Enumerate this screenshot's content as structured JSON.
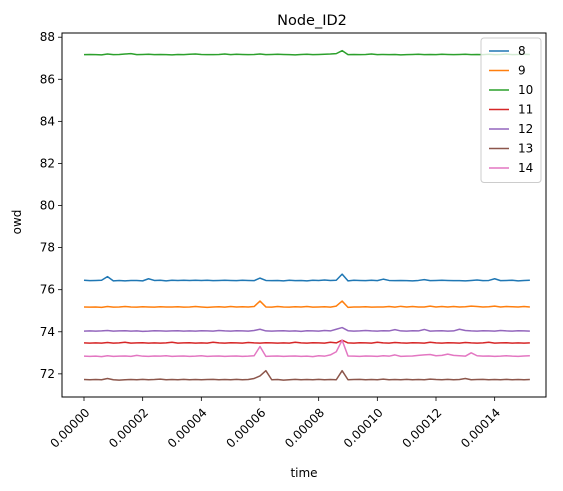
{
  "chart_data": {
    "type": "line",
    "title": "Node_ID2",
    "xlabel": "time",
    "ylabel": "owd",
    "xlim": [
      -7.5e-06,
      0.0001575
    ],
    "ylim": [
      70.9,
      88.2
    ],
    "xticks": [
      0,
      2e-05,
      4e-05,
      6e-05,
      8e-05,
      0.0001,
      0.00012,
      0.00014
    ],
    "xtick_labels": [
      "0.00000",
      "0.00002",
      "0.00004",
      "0.00006",
      "0.00008",
      "0.00010",
      "0.00012",
      "0.00014"
    ],
    "yticks": [
      72,
      74,
      76,
      78,
      80,
      82,
      84,
      86,
      88
    ],
    "ytick_labels": [
      "72",
      "74",
      "76",
      "78",
      "80",
      "82",
      "84",
      "86",
      "88"
    ],
    "x_start": 0,
    "x_step": 2e-06,
    "grid": false,
    "legend_position": "upper right",
    "series": [
      {
        "name": "8",
        "color": "#1f77b4",
        "values": [
          76.45,
          76.43,
          76.44,
          76.45,
          76.62,
          76.42,
          76.44,
          76.42,
          76.44,
          76.44,
          76.42,
          76.52,
          76.44,
          76.45,
          76.42,
          76.45,
          76.44,
          76.45,
          76.44,
          76.45,
          76.44,
          76.45,
          76.43,
          76.44,
          76.45,
          76.44,
          76.43,
          76.45,
          76.44,
          76.43,
          76.55,
          76.44,
          76.43,
          76.44,
          76.42,
          76.45,
          76.43,
          76.44,
          76.42,
          76.45,
          76.44,
          76.46,
          76.44,
          76.45,
          76.74,
          76.42,
          76.45,
          76.44,
          76.43,
          76.45,
          76.43,
          76.5,
          76.44,
          76.43,
          76.44,
          76.43,
          76.42,
          76.44,
          76.48,
          76.43,
          76.44,
          76.45,
          76.44,
          76.43,
          76.43,
          76.42,
          76.44,
          76.46,
          76.43,
          76.44,
          76.52,
          76.43,
          76.44,
          76.45,
          76.42,
          76.44,
          76.45
        ]
      },
      {
        "name": "9",
        "color": "#ff7f0e",
        "values": [
          75.18,
          75.17,
          75.18,
          75.16,
          75.2,
          75.17,
          75.18,
          75.2,
          75.18,
          75.17,
          75.19,
          75.18,
          75.17,
          75.19,
          75.18,
          75.18,
          75.19,
          75.17,
          75.18,
          75.2,
          75.18,
          75.16,
          75.18,
          75.19,
          75.17,
          75.2,
          75.18,
          75.19,
          75.18,
          75.2,
          75.46,
          75.18,
          75.17,
          75.2,
          75.18,
          75.17,
          75.19,
          75.18,
          75.2,
          75.17,
          75.18,
          75.19,
          75.17,
          75.22,
          75.46,
          75.16,
          75.18,
          75.18,
          75.19,
          75.17,
          75.18,
          75.18,
          75.2,
          75.17,
          75.21,
          75.18,
          75.2,
          75.18,
          75.18,
          75.22,
          75.18,
          75.2,
          75.18,
          75.2,
          75.18,
          75.19,
          75.22,
          75.2,
          75.18,
          75.19,
          75.22,
          75.18,
          75.2,
          75.19,
          75.18,
          75.2,
          75.18
        ]
      },
      {
        "name": "10",
        "color": "#2ca02c",
        "values": [
          87.17,
          87.18,
          87.17,
          87.16,
          87.2,
          87.17,
          87.18,
          87.2,
          87.22,
          87.17,
          87.18,
          87.19,
          87.17,
          87.18,
          87.17,
          87.16,
          87.18,
          87.17,
          87.19,
          87.2,
          87.18,
          87.17,
          87.17,
          87.18,
          87.2,
          87.17,
          87.19,
          87.18,
          87.17,
          87.18,
          87.2,
          87.17,
          87.18,
          87.19,
          87.18,
          87.17,
          87.16,
          87.18,
          87.19,
          87.17,
          87.18,
          87.19,
          87.2,
          87.22,
          87.36,
          87.17,
          87.18,
          87.17,
          87.18,
          87.2,
          87.17,
          87.18,
          87.17,
          87.18,
          87.16,
          87.17,
          87.18,
          87.19,
          87.17,
          87.18,
          87.17,
          87.19,
          87.18,
          87.17,
          87.18,
          87.19,
          87.17,
          87.18,
          87.17,
          87.19,
          87.17,
          87.18,
          87.2,
          87.17,
          87.18,
          87.19,
          87.18
        ]
      },
      {
        "name": "11",
        "color": "#d62728",
        "values": [
          73.47,
          73.46,
          73.47,
          73.46,
          73.49,
          73.46,
          73.47,
          73.5,
          73.46,
          73.47,
          73.48,
          73.46,
          73.47,
          73.46,
          73.47,
          73.5,
          73.46,
          73.47,
          73.48,
          73.46,
          73.47,
          73.46,
          73.5,
          73.47,
          73.46,
          73.48,
          73.47,
          73.46,
          73.49,
          73.47,
          73.46,
          73.48,
          73.47,
          73.46,
          73.47,
          73.46,
          73.5,
          73.47,
          73.46,
          73.48,
          73.47,
          73.46,
          73.5,
          73.47,
          73.6,
          73.47,
          73.46,
          73.48,
          73.47,
          73.46,
          73.5,
          73.47,
          73.46,
          73.49,
          73.47,
          73.46,
          73.48,
          73.47,
          73.46,
          73.5,
          73.47,
          73.46,
          73.48,
          73.47,
          73.46,
          73.49,
          73.47,
          73.46,
          73.47,
          73.5,
          73.46,
          73.47,
          73.48,
          73.46,
          73.47,
          73.46,
          73.47
        ]
      },
      {
        "name": "12",
        "color": "#9467bd",
        "values": [
          74.03,
          74.04,
          74.03,
          74.04,
          74.06,
          74.03,
          74.04,
          74.05,
          74.03,
          74.04,
          74.02,
          74.03,
          74.05,
          74.04,
          74.03,
          74.04,
          74.05,
          74.03,
          74.04,
          74.03,
          74.05,
          74.04,
          74.03,
          74.06,
          74.04,
          74.03,
          74.05,
          74.04,
          74.03,
          74.06,
          74.12,
          74.04,
          74.03,
          74.04,
          74.05,
          74.03,
          74.04,
          74.02,
          74.05,
          74.04,
          74.03,
          74.06,
          74.04,
          74.12,
          74.2,
          74.05,
          74.03,
          74.04,
          74.06,
          74.04,
          74.03,
          74.05,
          74.04,
          74.1,
          74.04,
          74.03,
          74.05,
          74.04,
          74.11,
          74.03,
          74.04,
          74.05,
          74.03,
          74.04,
          74.12,
          74.06,
          74.04,
          74.03,
          74.05,
          74.04,
          74.03,
          74.06,
          74.04,
          74.03,
          74.05,
          74.04,
          74.03
        ]
      },
      {
        "name": "13",
        "color": "#8c564b",
        "values": [
          71.73,
          71.72,
          71.73,
          71.72,
          71.78,
          71.72,
          71.7,
          71.72,
          71.73,
          71.72,
          71.74,
          71.72,
          71.73,
          71.75,
          71.72,
          71.73,
          71.72,
          71.74,
          71.72,
          71.73,
          71.72,
          71.73,
          71.74,
          71.72,
          71.73,
          71.72,
          71.74,
          71.72,
          71.73,
          71.78,
          71.9,
          72.15,
          71.72,
          71.73,
          71.7,
          71.72,
          71.74,
          71.72,
          71.73,
          71.72,
          71.74,
          71.72,
          71.73,
          71.72,
          72.15,
          71.72,
          71.73,
          71.74,
          71.72,
          71.73,
          71.72,
          71.75,
          71.72,
          71.73,
          71.72,
          71.74,
          71.72,
          71.73,
          71.72,
          71.75,
          71.73,
          71.72,
          71.74,
          71.72,
          71.73,
          71.78,
          71.72,
          71.73,
          71.74,
          71.72,
          71.73,
          71.72,
          71.74,
          71.72,
          71.73,
          71.72,
          71.73
        ]
      },
      {
        "name": "14",
        "color": "#e377c2",
        "values": [
          72.84,
          72.83,
          72.84,
          72.82,
          72.86,
          72.83,
          72.84,
          72.85,
          72.83,
          72.88,
          72.84,
          72.83,
          72.85,
          72.84,
          72.86,
          72.83,
          72.84,
          72.85,
          72.83,
          72.84,
          72.86,
          72.83,
          72.84,
          72.85,
          72.83,
          72.84,
          72.85,
          72.83,
          72.84,
          72.86,
          73.3,
          72.83,
          72.84,
          72.85,
          72.83,
          72.84,
          72.85,
          72.83,
          72.84,
          72.82,
          72.86,
          72.84,
          72.9,
          73.05,
          73.6,
          72.85,
          72.84,
          72.83,
          72.85,
          72.84,
          72.83,
          72.86,
          72.84,
          72.9,
          72.83,
          72.84,
          72.85,
          72.88,
          72.9,
          72.92,
          72.86,
          72.88,
          72.94,
          72.88,
          72.86,
          72.84,
          73.0,
          72.86,
          72.84,
          72.85,
          72.83,
          72.84,
          72.86,
          72.84,
          72.83,
          72.85,
          72.86
        ]
      }
    ]
  }
}
